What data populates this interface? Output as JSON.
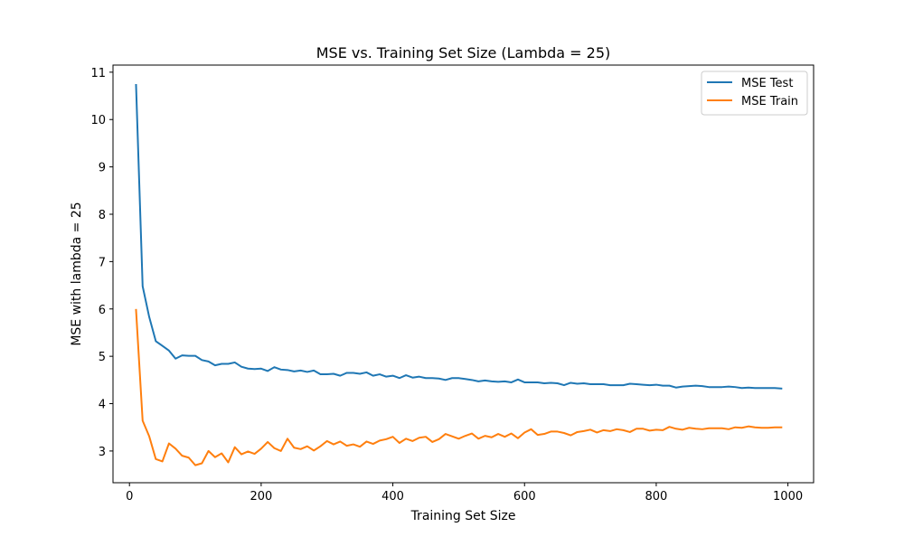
{
  "chart_data": {
    "type": "line",
    "title": "MSE vs. Training Set Size (Lambda = 25)",
    "xlabel": "Training Set Size",
    "ylabel": "MSE with lambda = 25",
    "xlim": [
      -25,
      1039
    ],
    "ylim": [
      2.33,
      11.15
    ],
    "xticks": [
      0,
      200,
      400,
      600,
      800,
      1000
    ],
    "yticks": [
      3,
      4,
      5,
      6,
      7,
      8,
      9,
      10,
      11
    ],
    "grid": false,
    "legend_position": "top-right",
    "x": [
      10,
      20,
      30,
      40,
      50,
      60,
      70,
      80,
      90,
      100,
      110,
      120,
      130,
      140,
      150,
      160,
      170,
      180,
      190,
      200,
      210,
      220,
      230,
      240,
      250,
      260,
      270,
      280,
      290,
      300,
      310,
      320,
      330,
      340,
      350,
      360,
      370,
      380,
      390,
      400,
      410,
      420,
      430,
      440,
      450,
      460,
      470,
      480,
      490,
      500,
      510,
      520,
      530,
      540,
      550,
      560,
      570,
      580,
      590,
      600,
      610,
      620,
      630,
      640,
      650,
      660,
      670,
      680,
      690,
      700,
      710,
      720,
      730,
      740,
      750,
      760,
      770,
      780,
      790,
      800,
      810,
      820,
      830,
      840,
      850,
      860,
      870,
      880,
      890,
      900,
      910,
      920,
      930,
      940,
      950,
      960,
      970,
      980,
      990
    ],
    "series": [
      {
        "name": "MSE Test",
        "color": "#1f77b4",
        "values": [
          10.73,
          6.48,
          5.83,
          5.32,
          5.22,
          5.12,
          4.95,
          5.02,
          5.01,
          5.01,
          4.92,
          4.89,
          4.81,
          4.84,
          4.84,
          4.87,
          4.78,
          4.74,
          4.73,
          4.74,
          4.69,
          4.77,
          4.72,
          4.71,
          4.68,
          4.7,
          4.67,
          4.7,
          4.62,
          4.62,
          4.63,
          4.59,
          4.65,
          4.65,
          4.63,
          4.66,
          4.59,
          4.62,
          4.57,
          4.59,
          4.54,
          4.6,
          4.55,
          4.57,
          4.54,
          4.54,
          4.53,
          4.5,
          4.54,
          4.54,
          4.52,
          4.5,
          4.47,
          4.49,
          4.47,
          4.46,
          4.47,
          4.45,
          4.51,
          4.45,
          4.45,
          4.45,
          4.43,
          4.44,
          4.43,
          4.39,
          4.44,
          4.42,
          4.43,
          4.41,
          4.41,
          4.41,
          4.39,
          4.39,
          4.39,
          4.42,
          4.41,
          4.4,
          4.39,
          4.4,
          4.38,
          4.38,
          4.34,
          4.36,
          4.37,
          4.38,
          4.37,
          4.35,
          4.35,
          4.35,
          4.36,
          4.35,
          4.33,
          4.34,
          4.33,
          4.33,
          4.33,
          4.33,
          4.32
        ]
      },
      {
        "name": "MSE Train",
        "color": "#ff7f0e",
        "values": [
          5.98,
          3.64,
          3.31,
          2.83,
          2.78,
          3.16,
          3.05,
          2.9,
          2.86,
          2.7,
          2.74,
          3.0,
          2.87,
          2.95,
          2.76,
          3.08,
          2.93,
          2.99,
          2.94,
          3.05,
          3.19,
          3.06,
          3.0,
          3.26,
          3.07,
          3.04,
          3.1,
          3.01,
          3.1,
          3.21,
          3.14,
          3.2,
          3.11,
          3.14,
          3.09,
          3.2,
          3.15,
          3.22,
          3.25,
          3.3,
          3.17,
          3.26,
          3.21,
          3.28,
          3.3,
          3.19,
          3.25,
          3.36,
          3.31,
          3.26,
          3.32,
          3.37,
          3.26,
          3.32,
          3.29,
          3.36,
          3.3,
          3.37,
          3.27,
          3.39,
          3.46,
          3.34,
          3.36,
          3.41,
          3.41,
          3.38,
          3.33,
          3.4,
          3.42,
          3.45,
          3.39,
          3.44,
          3.42,
          3.46,
          3.44,
          3.4,
          3.47,
          3.47,
          3.43,
          3.45,
          3.44,
          3.51,
          3.47,
          3.45,
          3.49,
          3.47,
          3.46,
          3.48,
          3.48,
          3.48,
          3.46,
          3.5,
          3.49,
          3.52,
          3.5,
          3.49,
          3.49,
          3.5,
          3.5
        ]
      }
    ]
  }
}
